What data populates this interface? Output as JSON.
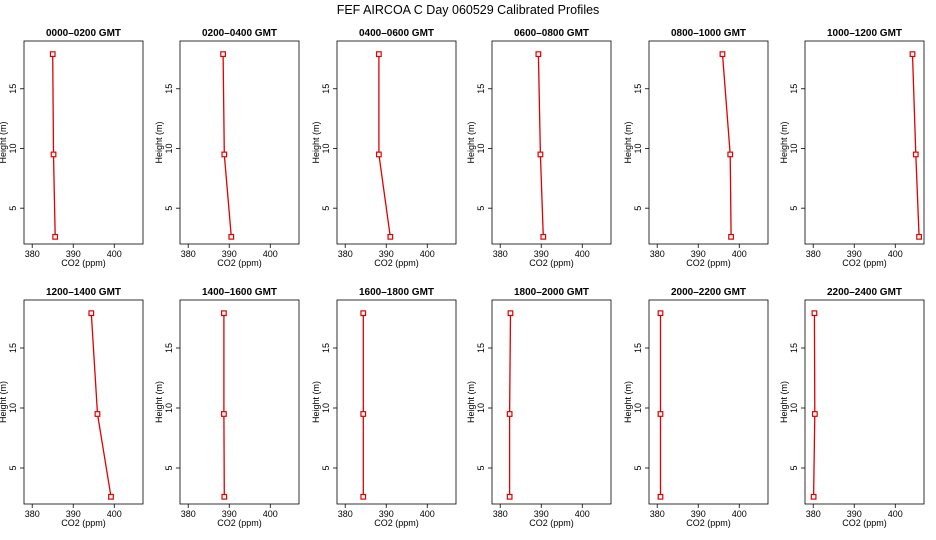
{
  "chart_data": {
    "type": "line",
    "title": "FEF AIRCOA C  Day 060529  Calibrated Profiles",
    "xlabel": "CO2 (ppm)",
    "ylabel": "Height (m)",
    "xlim": [
      378,
      407
    ],
    "ylim": [
      2,
      19
    ],
    "xticks": [
      380,
      390,
      400
    ],
    "yticks": [
      5,
      10,
      15
    ],
    "line_color": "#e00000",
    "panels": [
      {
        "label": "0000–0200 GMT",
        "points": [
          {
            "x": 385.0,
            "y": 17.9
          },
          {
            "x": 385.2,
            "y": 9.5
          },
          {
            "x": 385.6,
            "y": 2.6
          }
        ]
      },
      {
        "label": "0200–0400 GMT",
        "points": [
          {
            "x": 388.5,
            "y": 17.9
          },
          {
            "x": 388.8,
            "y": 9.5
          },
          {
            "x": 390.5,
            "y": 2.6
          }
        ]
      },
      {
        "label": "0400–0600 GMT",
        "points": [
          {
            "x": 388.2,
            "y": 17.9
          },
          {
            "x": 388.2,
            "y": 9.5
          },
          {
            "x": 391.0,
            "y": 2.6
          }
        ]
      },
      {
        "label": "0600–0800 GMT",
        "points": [
          {
            "x": 389.3,
            "y": 17.9
          },
          {
            "x": 389.8,
            "y": 9.5
          },
          {
            "x": 390.5,
            "y": 2.6
          }
        ]
      },
      {
        "label": "0800–1000 GMT",
        "points": [
          {
            "x": 395.9,
            "y": 17.9
          },
          {
            "x": 397.8,
            "y": 9.5
          },
          {
            "x": 398.0,
            "y": 2.6
          }
        ]
      },
      {
        "label": "1000–1200 GMT",
        "points": [
          {
            "x": 404.2,
            "y": 17.9
          },
          {
            "x": 405.0,
            "y": 9.5
          },
          {
            "x": 405.8,
            "y": 2.6
          }
        ]
      },
      {
        "label": "1200–1400 GMT",
        "points": [
          {
            "x": 394.4,
            "y": 17.9
          },
          {
            "x": 395.9,
            "y": 9.5
          },
          {
            "x": 399.2,
            "y": 2.6
          }
        ]
      },
      {
        "label": "1400–1600 GMT",
        "points": [
          {
            "x": 388.7,
            "y": 17.9
          },
          {
            "x": 388.7,
            "y": 9.5
          },
          {
            "x": 388.8,
            "y": 2.6
          }
        ]
      },
      {
        "label": "1600–1800 GMT",
        "points": [
          {
            "x": 384.4,
            "y": 17.9
          },
          {
            "x": 384.4,
            "y": 9.5
          },
          {
            "x": 384.4,
            "y": 2.6
          }
        ]
      },
      {
        "label": "1800–2000 GMT",
        "points": [
          {
            "x": 382.5,
            "y": 17.9
          },
          {
            "x": 382.3,
            "y": 9.5
          },
          {
            "x": 382.3,
            "y": 2.6
          }
        ]
      },
      {
        "label": "2000–2200 GMT",
        "points": [
          {
            "x": 380.8,
            "y": 17.9
          },
          {
            "x": 380.8,
            "y": 9.5
          },
          {
            "x": 380.8,
            "y": 2.6
          }
        ]
      },
      {
        "label": "2200–2400 GMT",
        "points": [
          {
            "x": 380.3,
            "y": 17.9
          },
          {
            "x": 380.4,
            "y": 9.5
          },
          {
            "x": 380.1,
            "y": 2.6
          }
        ]
      }
    ]
  }
}
